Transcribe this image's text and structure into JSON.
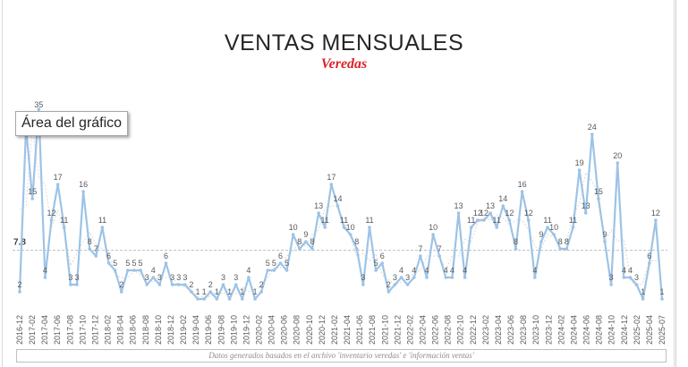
{
  "chart_data": {
    "type": "line",
    "title": "VENTAS MENSUALES",
    "subtitle": "Veredas",
    "tooltip": "Área del gráfico",
    "footer": "Datos generados basados en el archivo 'inventario veredas' e 'información ventas'",
    "colors": {
      "series": "#9dc3e6",
      "average": "#bfbfbf",
      "subtitle": "#d9252a"
    },
    "average": {
      "value": 7.8,
      "label": "7.8"
    },
    "grid": false,
    "ylim": [
      0,
      26
    ],
    "x_tick_labels": [
      "2016-12",
      "2017-02",
      "2017-04",
      "2017-06",
      "2017-08",
      "2017-10",
      "2017-12",
      "2018-02",
      "2018-04",
      "2018-06",
      "2018-08",
      "2018-10",
      "2018-12",
      "2019-02",
      "2019-04",
      "2019-06",
      "2019-08",
      "2019-10",
      "2019-12",
      "2020-02",
      "2020-04",
      "2020-06",
      "2020-08",
      "2020-10",
      "2020-12",
      "2021-02",
      "2021-04",
      "2021-06",
      "2021-08",
      "2021-10",
      "2021-12",
      "2022-02",
      "2022-04",
      "2022-06",
      "2022-08",
      "2022-10",
      "2022-12",
      "2023-02",
      "2023-04",
      "2023-06",
      "2023-08",
      "2023-10",
      "2023-12",
      "2024-02",
      "2024-04",
      "2024-06",
      "2024-08",
      "2024-10",
      "2024-12",
      "2025-02",
      "2025-04",
      "2025-07"
    ],
    "series": [
      {
        "values": [
          2,
          25,
          15,
          35,
          4,
          12,
          17,
          11,
          3,
          3,
          16,
          8,
          7,
          11,
          6,
          5,
          2,
          5,
          5,
          5,
          3,
          4,
          3,
          6,
          3,
          3,
          3,
          2,
          1,
          1,
          2,
          1,
          3,
          1,
          3,
          1,
          4,
          1,
          2,
          5,
          5,
          6,
          5,
          10,
          8,
          9,
          8,
          13,
          11,
          17,
          14,
          11,
          10,
          8,
          3,
          11,
          5,
          6,
          2,
          3,
          4,
          3,
          4,
          7,
          4,
          10,
          7,
          4,
          4,
          13,
          4,
          11,
          12,
          12,
          13,
          11,
          14,
          12,
          8,
          16,
          12,
          4,
          9,
          11,
          10,
          8,
          8,
          11,
          19,
          13,
          24,
          15,
          9,
          3,
          20,
          4,
          4,
          3,
          1,
          6,
          12,
          1
        ],
        "labels": [
          "2",
          "25",
          "15",
          "35",
          "4",
          "12",
          "17",
          "11",
          "3",
          "3",
          "16",
          "8",
          "7",
          "11",
          "6",
          "5",
          "2",
          "5",
          "5",
          "5",
          "3",
          "4",
          "3",
          "6",
          "3",
          "3",
          "3",
          "2",
          "1",
          "1",
          "2",
          "1",
          "3",
          "1",
          "3",
          "1",
          "4",
          "1",
          "2",
          "5",
          "5",
          "6",
          "5",
          "10",
          "8",
          "9",
          "8",
          "13",
          "11",
          "17",
          "14",
          "11",
          "10",
          "8",
          "3",
          "11",
          "5",
          "6",
          "2",
          "3",
          "4",
          "3",
          "4",
          "7",
          "4",
          "10",
          "7",
          "4",
          "4",
          "13",
          "4",
          "11",
          "12",
          "12",
          "13",
          "11",
          "14",
          "12",
          "8",
          "16",
          "12",
          "4",
          "9",
          "11",
          "10",
          "8",
          "8",
          "11",
          "19",
          "13",
          "24",
          "15",
          "9",
          "3",
          "20",
          "4",
          "4",
          "3",
          "1",
          "6",
          "12",
          "1"
        ]
      }
    ]
  }
}
